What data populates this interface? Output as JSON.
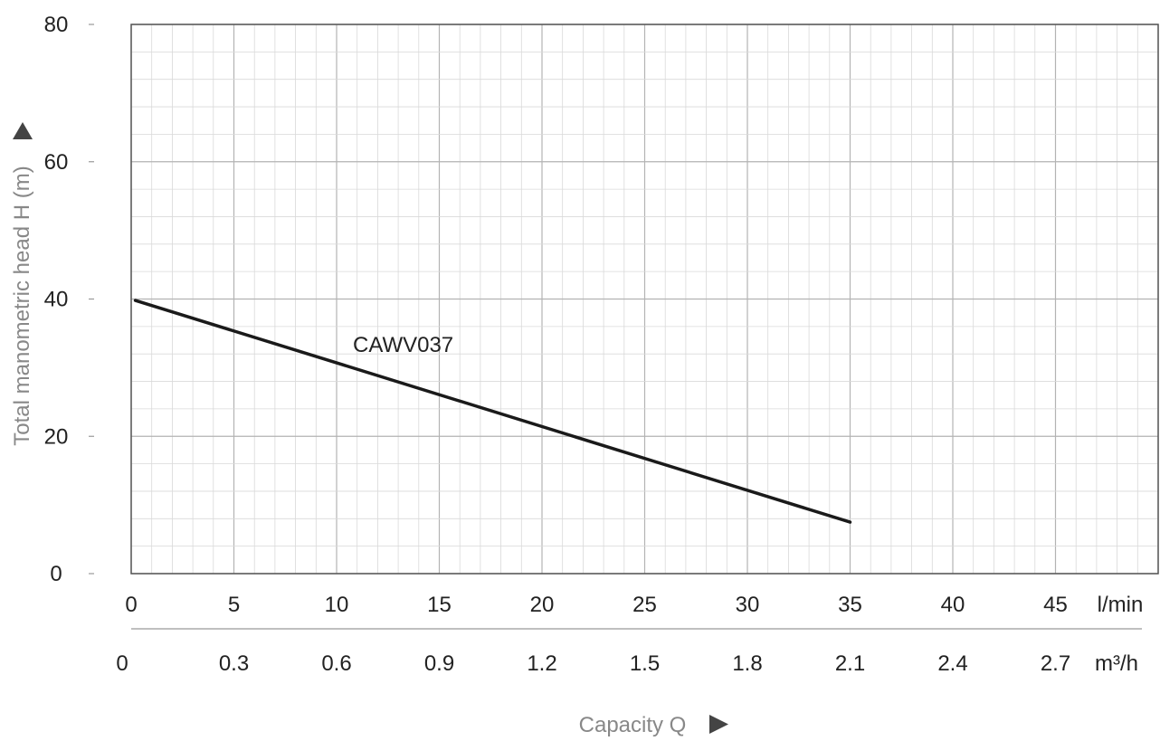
{
  "chart_data": {
    "type": "line",
    "title": "",
    "xlabel": "Capacity Q",
    "ylabel": "Total manometric head H (m)",
    "xlim": [
      0,
      50
    ],
    "ylim": [
      0,
      80
    ],
    "grid": true,
    "x_ticks": [
      "0",
      "5",
      "10",
      "15",
      "20",
      "25",
      "30",
      "35",
      "40",
      "45"
    ],
    "x_unit": "l/min",
    "x2_ticks": [
      "0",
      "0.3",
      "0.6",
      "0.9",
      "1.2",
      "1.5",
      "1.8",
      "2.1",
      "2.4",
      "2.7"
    ],
    "x2_unit": "m³/h",
    "y_ticks": [
      "0",
      "20",
      "40",
      "60",
      "80"
    ],
    "series": [
      {
        "name": "CAWV037",
        "x": [
          0.2,
          35
        ],
        "y": [
          39.8,
          7.5
        ]
      }
    ],
    "colors": {
      "line": "#1a1a1a",
      "grid_minor": "#d9d9d9",
      "grid_major": "#b3b3b3",
      "axis_title": "#888888",
      "arrow": "#444444"
    }
  }
}
